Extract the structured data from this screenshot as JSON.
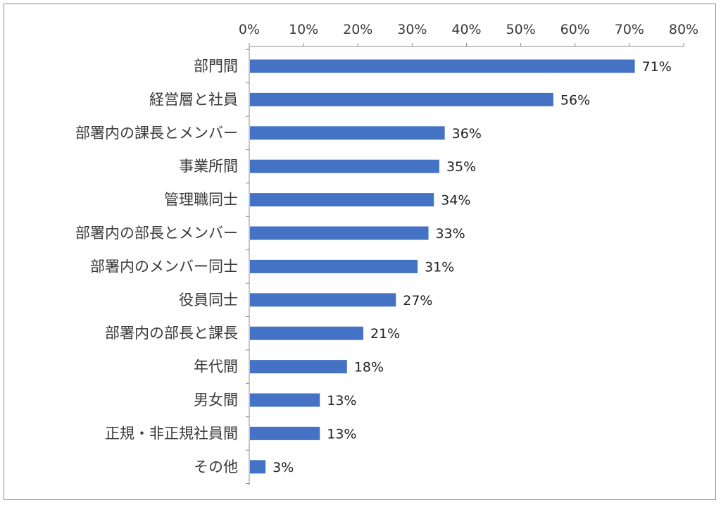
{
  "chart_data": {
    "type": "bar",
    "orientation": "horizontal",
    "categories": [
      "部門間",
      "経営層と社員",
      "部署内の課長とメンバー",
      "事業所間",
      "管理職同士",
      "部署内の部長とメンバー",
      "部署内のメンバー同士",
      "役員同士",
      "部署内の部長と課長",
      "年代間",
      "男女間",
      "正規・非正規社員間",
      "その他"
    ],
    "values": [
      71,
      56,
      36,
      35,
      34,
      33,
      31,
      27,
      21,
      18,
      13,
      13,
      3
    ],
    "data_labels": [
      "71%",
      "56%",
      "36%",
      "35%",
      "34%",
      "33%",
      "31%",
      "27%",
      "21%",
      "18%",
      "13%",
      "13%",
      "3%"
    ],
    "x_ticks": [
      0,
      10,
      20,
      30,
      40,
      50,
      60,
      70,
      80
    ],
    "x_tick_labels": [
      "0%",
      "10%",
      "20%",
      "30%",
      "40%",
      "50%",
      "60%",
      "70%",
      "80%"
    ],
    "xlim": [
      0,
      80
    ],
    "x_axis_position": "top",
    "grid": false,
    "legend": "none",
    "title": "",
    "xlabel": "",
    "ylabel": "",
    "bar_color": "#4472c4"
  }
}
